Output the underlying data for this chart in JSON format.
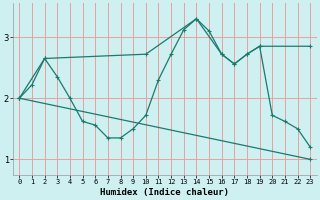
{
  "xlabel": "Humidex (Indice chaleur)",
  "bg_color": "#cff0f0",
  "grid_color": "#e8a0a0",
  "line_color": "#1a7a6e",
  "xlim": [
    -0.5,
    23.5
  ],
  "ylim": [
    0.75,
    3.55
  ],
  "yticks": [
    1,
    2,
    3
  ],
  "xticks": [
    0,
    1,
    2,
    3,
    4,
    5,
    6,
    7,
    8,
    9,
    10,
    11,
    12,
    13,
    14,
    15,
    16,
    17,
    18,
    19,
    20,
    21,
    22,
    23
  ],
  "line1_x": [
    0,
    1,
    2,
    3,
    4,
    5,
    6,
    7,
    8,
    9,
    10,
    11,
    12,
    13,
    14,
    15,
    16,
    17,
    18,
    19,
    20,
    21,
    22,
    23
  ],
  "line1_y": [
    2.0,
    2.22,
    2.65,
    2.35,
    2.0,
    1.62,
    1.56,
    1.35,
    1.35,
    1.5,
    1.72,
    2.3,
    2.72,
    3.12,
    3.3,
    3.1,
    2.72,
    2.56,
    2.72,
    2.85,
    1.72,
    1.62,
    1.5,
    1.2
  ],
  "line2_x": [
    0,
    2,
    10,
    14,
    16,
    17,
    18,
    19,
    23
  ],
  "line2_y": [
    2.0,
    2.65,
    2.72,
    3.3,
    2.72,
    2.56,
    2.72,
    2.85,
    2.85
  ],
  "line3_x": [
    0,
    23
  ],
  "line3_y": [
    2.0,
    1.0
  ]
}
